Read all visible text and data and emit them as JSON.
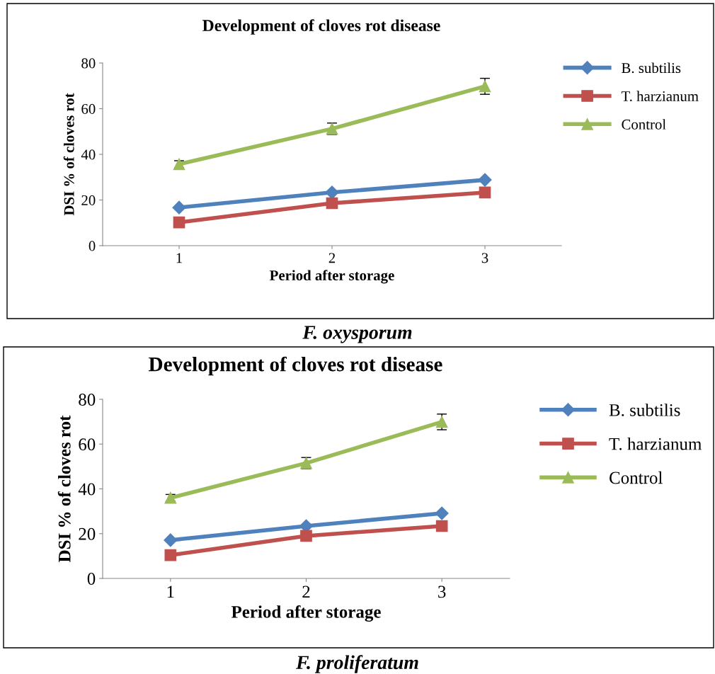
{
  "chart_data": [
    {
      "type": "line",
      "title": "Development of cloves rot disease",
      "xlabel": "Period after storage",
      "ylabel": "DSI % of cloves rot",
      "categories": [
        "1",
        "2",
        "3"
      ],
      "ylim": [
        0,
        80
      ],
      "yticks": [
        0,
        20,
        40,
        60,
        80
      ],
      "grid": false,
      "legend": "right",
      "line_style": "solid",
      "series": [
        {
          "name": "B. subtilis",
          "color": "#4f81bd",
          "marker": "diamond",
          "values": [
            16.7,
            23.3,
            28.8
          ]
        },
        {
          "name": "T. harzianum",
          "color": "#c0504d",
          "marker": "square",
          "values": [
            10.2,
            18.6,
            23.3
          ]
        },
        {
          "name": "Control",
          "color": "#9bbb59",
          "marker": "triangle",
          "values": [
            35.7,
            51.2,
            69.8
          ],
          "errors": [
            1.5,
            2.5,
            3.5
          ]
        }
      ],
      "annotations": [
        "F. oxysporum"
      ]
    },
    {
      "type": "line",
      "title": "Development of cloves rot disease",
      "xlabel": "Period after storage",
      "ylabel": "DSI % of cloves rot",
      "categories": [
        "1",
        "2",
        "3"
      ],
      "ylim": [
        0,
        80
      ],
      "yticks": [
        0,
        20,
        40,
        60,
        80
      ],
      "grid": false,
      "legend": "right",
      "line_style": "solid",
      "series": [
        {
          "name": "B. subtilis",
          "color": "#4f81bd",
          "marker": "diamond",
          "values": [
            17.1,
            23.4,
            29.1
          ]
        },
        {
          "name": "T. harzianum",
          "color": "#c0504d",
          "marker": "square",
          "values": [
            10.4,
            19.0,
            23.4
          ]
        },
        {
          "name": "Control",
          "color": "#9bbb59",
          "marker": "triangle",
          "values": [
            36.0,
            51.5,
            69.9
          ],
          "errors": [
            1.5,
            2.5,
            3.5
          ]
        }
      ],
      "annotations": [
        "F. proliferatum"
      ]
    }
  ]
}
